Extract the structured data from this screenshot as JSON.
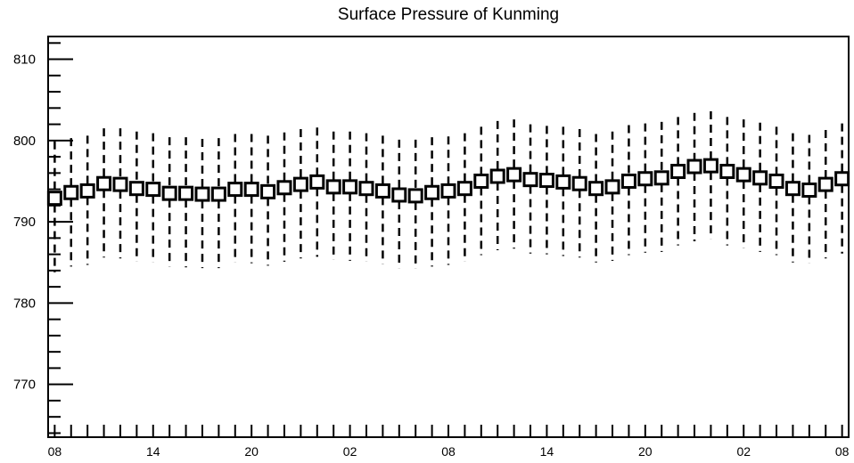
{
  "chart_data": {
    "type": "box",
    "title": "Surface Pressure of Kunming",
    "xlabel": "",
    "ylabel": "",
    "ylim": [
      763.5,
      812.8
    ],
    "yticks": [
      770,
      780,
      790,
      800,
      810
    ],
    "ytick_labels": [
      "770",
      "780",
      "790",
      "800",
      "810"
    ],
    "xtick_labels": [
      "08",
      "14",
      "20",
      "02",
      "08",
      "14",
      "20",
      "02",
      "08"
    ],
    "xtick_positions": [
      0,
      6,
      12,
      18,
      24,
      30,
      36,
      42,
      48
    ],
    "xlim": [
      -0.4,
      48.4
    ],
    "grid": false,
    "legend": "none",
    "series": [
      {
        "x": [
          0,
          1,
          2,
          3,
          4,
          5,
          6,
          7,
          8,
          9,
          10,
          11,
          12,
          13,
          14,
          15,
          16,
          17,
          18,
          19,
          20,
          21,
          22,
          23,
          24,
          25,
          26,
          27,
          28,
          29,
          30,
          31,
          32,
          33,
          34,
          35,
          36,
          37,
          38,
          39,
          40,
          41,
          42,
          43,
          44,
          45,
          46,
          47,
          48
        ],
        "center": [
          792.9,
          793.6,
          793.8,
          794.7,
          794.6,
          794.1,
          794.0,
          793.5,
          793.5,
          793.4,
          793.4,
          794.0,
          794.0,
          793.7,
          794.2,
          794.6,
          794.9,
          794.3,
          794.3,
          794.1,
          793.8,
          793.3,
          793.2,
          793.6,
          793.8,
          794.1,
          795.0,
          795.6,
          795.8,
          795.2,
          795.1,
          794.9,
          794.7,
          794.1,
          794.3,
          795.0,
          795.3,
          795.4,
          796.2,
          796.8,
          796.9,
          796.2,
          795.8,
          795.4,
          795.0,
          794.1,
          793.9,
          794.6,
          795.3
        ],
        "upper": [
          799.9,
          800.3,
          800.6,
          801.5,
          801.5,
          801.1,
          800.9,
          800.4,
          800.4,
          800.2,
          800.3,
          800.8,
          800.8,
          800.6,
          801.0,
          801.4,
          801.6,
          801.1,
          801.1,
          800.9,
          800.6,
          800.1,
          800.1,
          800.4,
          800.5,
          800.9,
          801.7,
          802.4,
          802.6,
          802.0,
          801.8,
          801.7,
          801.4,
          800.8,
          801.1,
          801.9,
          802.1,
          802.3,
          802.9,
          803.4,
          803.6,
          802.9,
          802.6,
          802.2,
          801.7,
          800.9,
          800.7,
          801.3,
          802.1
        ],
        "lower": [
          783.8,
          784.5,
          784.7,
          785.6,
          785.5,
          785.1,
          785.0,
          784.5,
          784.4,
          784.3,
          784.3,
          785.0,
          784.9,
          784.6,
          785.1,
          785.5,
          785.7,
          785.3,
          785.2,
          785.1,
          784.8,
          784.3,
          784.2,
          784.5,
          784.7,
          785.1,
          785.9,
          786.5,
          786.7,
          786.1,
          786.0,
          785.8,
          785.6,
          785.0,
          785.2,
          785.9,
          786.2,
          786.3,
          787.1,
          787.6,
          787.9,
          787.1,
          786.8,
          786.3,
          785.9,
          785.0,
          784.9,
          785.5,
          786.1
        ]
      }
    ]
  }
}
